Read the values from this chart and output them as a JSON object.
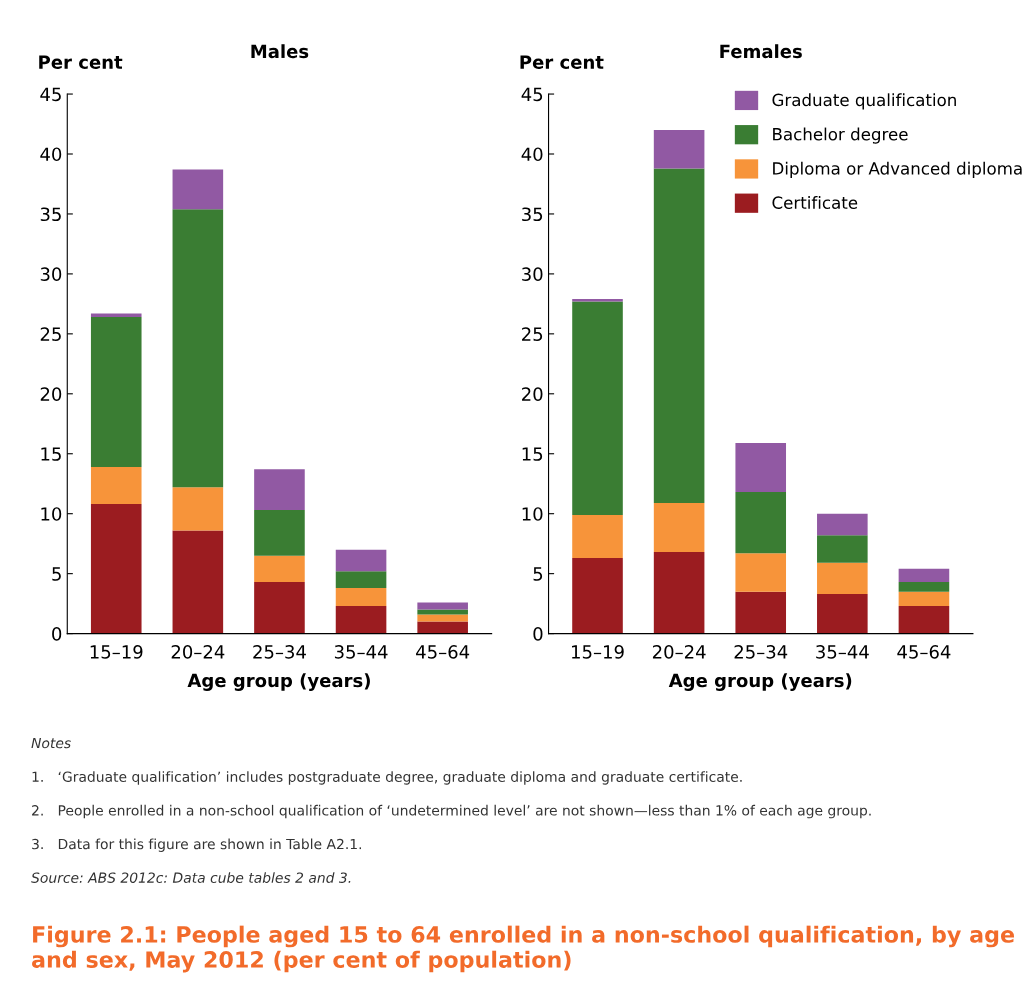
{
  "chart_data": [
    {
      "type": "bar",
      "stacked": true,
      "title": "Males",
      "ylabel": "Per cent",
      "xlabel": "Age group (years)",
      "categories": [
        "15–19",
        "20–24",
        "25–34",
        "35–44",
        "45–64"
      ],
      "ylim": [
        0,
        45
      ],
      "yticks": [
        0,
        5,
        10,
        15,
        20,
        25,
        30,
        35,
        40,
        45
      ],
      "grid": false,
      "series": [
        {
          "color": "#9b1c20",
          "values": [
            10.8,
            8.6,
            4.3,
            2.3,
            1.0
          ]
        },
        {
          "color": "#f7943a",
          "values": [
            3.1,
            3.6,
            2.2,
            1.5,
            0.6
          ]
        },
        {
          "color": "#3a7d33",
          "values": [
            12.5,
            23.2,
            3.8,
            1.4,
            0.4
          ]
        },
        {
          "color": "#9159a3",
          "values": [
            0.3,
            3.3,
            3.4,
            1.8,
            0.6
          ]
        }
      ]
    },
    {
      "type": "bar",
      "stacked": true,
      "title": "Females",
      "ylabel": "Per cent",
      "xlabel": "Age group (years)",
      "categories": [
        "15–19",
        "20–24",
        "25–34",
        "35–44",
        "45–64"
      ],
      "ylim": [
        0,
        45
      ],
      "yticks": [
        0,
        5,
        10,
        15,
        20,
        25,
        30,
        35,
        40,
        45
      ],
      "grid": false,
      "legend": "top right",
      "series": [
        {
          "name": "Certificate",
          "color": "#9b1c20",
          "values": [
            6.3,
            6.8,
            3.5,
            3.3,
            2.3
          ]
        },
        {
          "name": "Diploma or Advanced diploma",
          "color": "#f7943a",
          "values": [
            3.6,
            4.1,
            3.2,
            2.6,
            1.2
          ]
        },
        {
          "name": "Bachelor degree",
          "color": "#3a7d33",
          "values": [
            17.8,
            27.9,
            5.1,
            2.3,
            0.8
          ]
        },
        {
          "name": "Graduate qualification",
          "color": "#9159a3",
          "values": [
            0.2,
            3.2,
            4.1,
            1.8,
            1.1
          ]
        }
      ],
      "annotations": [
        "Notes",
        "1.   ‘Graduate qualification’ includes postgraduate degree, graduate diploma and graduate certificate.",
        "2.   People enrolled in a non-school qualification of ‘undetermined level’ are not shown—less than 1% of each age group.",
        "3.   Data for this figure are shown in Table A2.1.",
        "Source: ABS 2012c: Data cube tables 2 and 3.",
        "Figure 2.1: People aged 15 to 64 enrolled in a non-school qualification, by age and sex, May 2012 (per cent of population)"
      ]
    }
  ]
}
